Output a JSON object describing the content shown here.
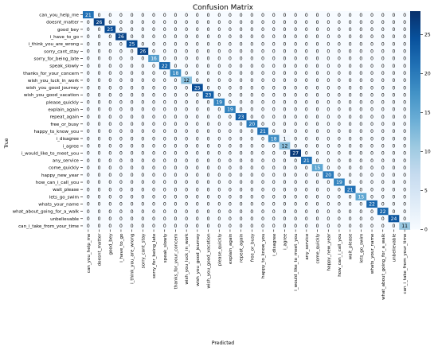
{
  "chart_data": {
    "type": "heatmap",
    "title": "Confusion Matrix",
    "xlabel": "Predicted",
    "ylabel": "True",
    "labels": [
      "can_you_help_me",
      "doesnt_matter",
      "good_bey",
      "i_have_to_go",
      "i_think_you_are_wrong",
      "sorry_cant_stay",
      "sorry_for_being_late",
      "speak_slowly",
      "thanks_for_your_concern",
      "wish_you_luck_in_work",
      "wish_you_good_journey",
      "wish_you_good_vacation",
      "please_quickly",
      "explain_again",
      "repeat_again",
      "free_or_busy",
      "happy_to_know_you",
      "i_disagree",
      "i_agree",
      "i_would_like_to_meet_you",
      "any_service",
      "come_quickly",
      "happy_new_year",
      "how_can_i_call_you",
      "wait_please",
      "lets_go_swim",
      "whats_your_name",
      "what_about_going_for_a_walk",
      "unbelievable",
      "can_i_take_from_your_time"
    ],
    "x_tick_labels": [
      "can_you_help_me",
      "doesnt_matter",
      "good_bey",
      "i_have_to_go",
      "i_think_you_are_wrong",
      "sorry_cant_stay",
      "sorry_for_being_late",
      "speak_slowly",
      "thanks_for_your_concern",
      "wish_you_luck_in_work",
      "wish_you_good_journey",
      "wish_you_good_vacation",
      "please_quickly",
      "explain_again",
      "repeat_again",
      "free_or_busy",
      "happy_to_know_you",
      "i_disagree",
      "i_agree",
      "i_would_like_to_meet_you",
      "any_service",
      "come_quickly",
      "happy_new_year",
      "how_can_i_call_you",
      "wait_please",
      "lets_go_swim",
      "whats_your_name",
      "what_about_going_for_a_walk",
      "unbelievable",
      "can_i_take_from_your_time"
    ],
    "diagonal": [
      21,
      26,
      25,
      26,
      25,
      26,
      16,
      22,
      18,
      12,
      25,
      23,
      19,
      19,
      23,
      20,
      21,
      18,
      12,
      27,
      21,
      15,
      20,
      19,
      21,
      15,
      22,
      22,
      24,
      11
    ],
    "off_diagonal": [
      {
        "row": 17,
        "col": 18,
        "value": 1
      }
    ],
    "colorbar": {
      "min": 0,
      "max": 28,
      "ticks": [
        0,
        5,
        10,
        15,
        20,
        25
      ]
    },
    "colormap": [
      "#f7fbff",
      "#deebf7",
      "#c6dbef",
      "#9ecae1",
      "#6baed6",
      "#4292c6",
      "#2171b5",
      "#08519c",
      "#08306b"
    ],
    "grid": false,
    "legend": "colorbar-right"
  }
}
